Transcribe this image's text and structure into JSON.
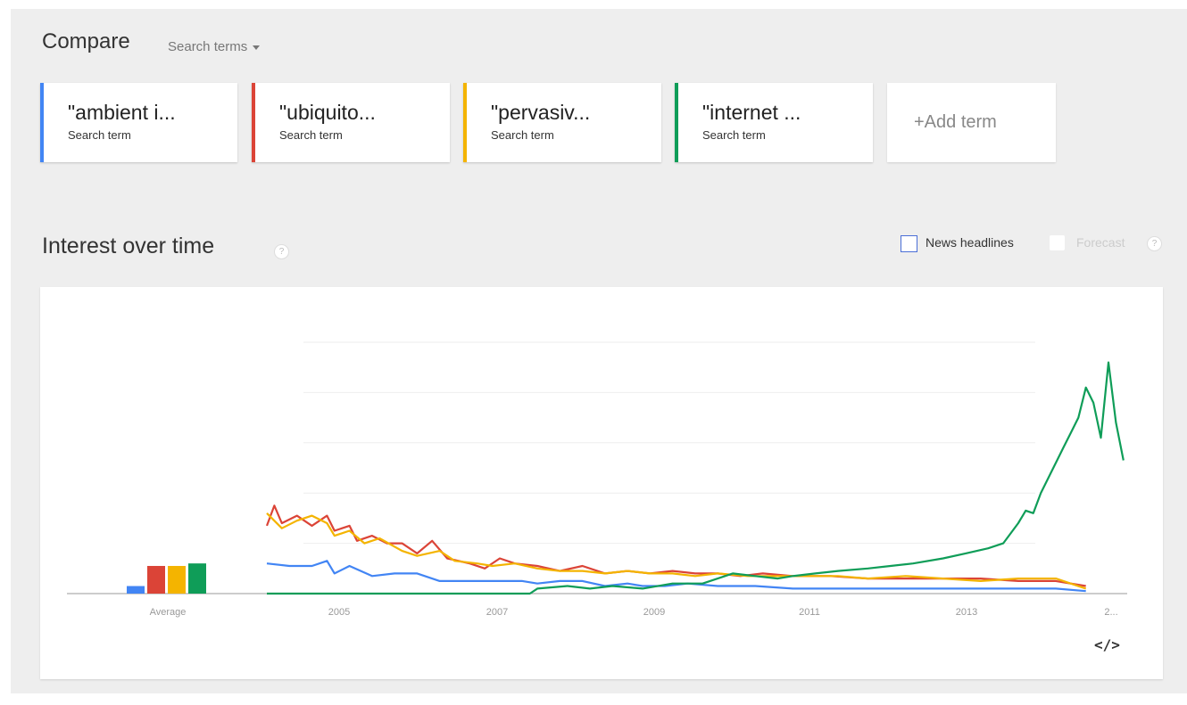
{
  "compare": {
    "title": "Compare",
    "dropdown_label": "Search terms"
  },
  "terms": [
    {
      "label": "\"ambient i...",
      "sub": "Search term",
      "color": "#4285f4"
    },
    {
      "label": "\"ubiquito...",
      "sub": "Search term",
      "color": "#db4437"
    },
    {
      "label": "\"pervasiv...",
      "sub": "Search term",
      "color": "#f4b400"
    },
    {
      "label": "\"internet ...",
      "sub": "Search term",
      "color": "#0f9d58"
    }
  ],
  "add_term": "+Add term",
  "interest": {
    "title": "Interest over time",
    "help": "?",
    "news_label": "News headlines",
    "forecast_label": "Forecast",
    "forecast_help": "?"
  },
  "embed_label": "</>",
  "chart_data": {
    "type": "line",
    "x_ticks": [
      "2005",
      "2007",
      "2009",
      "2011",
      "2013",
      "2..."
    ],
    "ylim": [
      0,
      100
    ],
    "grid": true,
    "average_label": "Average",
    "averages": [
      3,
      11,
      11,
      12
    ],
    "series": [
      {
        "color": "#4285f4",
        "points": [
          [
            2004.0,
            12
          ],
          [
            2004.3,
            11
          ],
          [
            2004.6,
            11
          ],
          [
            2004.8,
            13
          ],
          [
            2004.9,
            8
          ],
          [
            2005.1,
            11
          ],
          [
            2005.4,
            7
          ],
          [
            2005.7,
            8
          ],
          [
            2006.0,
            8
          ],
          [
            2006.3,
            5
          ],
          [
            2006.7,
            5
          ],
          [
            2007.0,
            5
          ],
          [
            2007.4,
            5
          ],
          [
            2007.6,
            4
          ],
          [
            2007.9,
            5
          ],
          [
            2008.2,
            5
          ],
          [
            2008.5,
            3
          ],
          [
            2008.8,
            4
          ],
          [
            2009.0,
            3
          ],
          [
            2009.3,
            3
          ],
          [
            2009.6,
            4
          ],
          [
            2010.0,
            3
          ],
          [
            2010.5,
            3
          ],
          [
            2011.0,
            2
          ],
          [
            2011.5,
            2
          ],
          [
            2012.0,
            2
          ],
          [
            2012.5,
            2
          ],
          [
            2013.0,
            2
          ],
          [
            2013.5,
            2
          ],
          [
            2014.0,
            2
          ],
          [
            2014.5,
            2
          ],
          [
            2014.9,
            1
          ]
        ]
      },
      {
        "color": "#db4437",
        "points": [
          [
            2004.0,
            27
          ],
          [
            2004.1,
            35
          ],
          [
            2004.2,
            28
          ],
          [
            2004.4,
            31
          ],
          [
            2004.6,
            27
          ],
          [
            2004.8,
            31
          ],
          [
            2004.9,
            25
          ],
          [
            2005.1,
            27
          ],
          [
            2005.2,
            21
          ],
          [
            2005.4,
            23
          ],
          [
            2005.6,
            20
          ],
          [
            2005.8,
            20
          ],
          [
            2006.0,
            16
          ],
          [
            2006.2,
            21
          ],
          [
            2006.4,
            14
          ],
          [
            2006.7,
            12
          ],
          [
            2006.9,
            10
          ],
          [
            2007.1,
            14
          ],
          [
            2007.3,
            12
          ],
          [
            2007.6,
            11
          ],
          [
            2007.9,
            9
          ],
          [
            2008.2,
            11
          ],
          [
            2008.5,
            8
          ],
          [
            2008.8,
            9
          ],
          [
            2009.1,
            8
          ],
          [
            2009.4,
            9
          ],
          [
            2009.7,
            8
          ],
          [
            2010.0,
            8
          ],
          [
            2010.3,
            7
          ],
          [
            2010.6,
            8
          ],
          [
            2011.0,
            7
          ],
          [
            2011.5,
            7
          ],
          [
            2012.0,
            6
          ],
          [
            2012.5,
            6
          ],
          [
            2013.0,
            6
          ],
          [
            2013.5,
            6
          ],
          [
            2014.0,
            5
          ],
          [
            2014.5,
            5
          ],
          [
            2014.9,
            3
          ]
        ]
      },
      {
        "color": "#f4b400",
        "points": [
          [
            2004.0,
            32
          ],
          [
            2004.2,
            26
          ],
          [
            2004.4,
            29
          ],
          [
            2004.6,
            31
          ],
          [
            2004.8,
            28
          ],
          [
            2004.9,
            23
          ],
          [
            2005.1,
            25
          ],
          [
            2005.3,
            20
          ],
          [
            2005.5,
            22
          ],
          [
            2005.8,
            17
          ],
          [
            2006.0,
            15
          ],
          [
            2006.3,
            17
          ],
          [
            2006.5,
            13
          ],
          [
            2006.8,
            12
          ],
          [
            2007.0,
            11
          ],
          [
            2007.3,
            12
          ],
          [
            2007.6,
            10
          ],
          [
            2007.9,
            9
          ],
          [
            2008.2,
            9
          ],
          [
            2008.5,
            8
          ],
          [
            2008.8,
            9
          ],
          [
            2009.1,
            8
          ],
          [
            2009.4,
            8
          ],
          [
            2009.7,
            7
          ],
          [
            2010.0,
            8
          ],
          [
            2010.4,
            7
          ],
          [
            2010.8,
            7
          ],
          [
            2011.2,
            7
          ],
          [
            2011.6,
            7
          ],
          [
            2012.0,
            6
          ],
          [
            2012.5,
            7
          ],
          [
            2013.0,
            6
          ],
          [
            2013.5,
            5
          ],
          [
            2014.0,
            6
          ],
          [
            2014.5,
            6
          ],
          [
            2014.9,
            2
          ]
        ]
      },
      {
        "color": "#0f9d58",
        "points": [
          [
            2004.0,
            0
          ],
          [
            2005.0,
            0
          ],
          [
            2006.0,
            0
          ],
          [
            2007.0,
            0
          ],
          [
            2007.5,
            0
          ],
          [
            2007.6,
            2
          ],
          [
            2008.0,
            3
          ],
          [
            2008.3,
            2
          ],
          [
            2008.6,
            3
          ],
          [
            2009.0,
            2
          ],
          [
            2009.4,
            4
          ],
          [
            2009.8,
            4
          ],
          [
            2010.0,
            6
          ],
          [
            2010.2,
            8
          ],
          [
            2010.5,
            7
          ],
          [
            2010.8,
            6
          ],
          [
            2011.0,
            7
          ],
          [
            2011.3,
            8
          ],
          [
            2011.6,
            9
          ],
          [
            2012.0,
            10
          ],
          [
            2012.3,
            11
          ],
          [
            2012.6,
            12
          ],
          [
            2013.0,
            14
          ],
          [
            2013.3,
            16
          ],
          [
            2013.6,
            18
          ],
          [
            2013.8,
            20
          ],
          [
            2014.0,
            28
          ],
          [
            2014.1,
            33
          ],
          [
            2014.2,
            32
          ],
          [
            2014.3,
            40
          ],
          [
            2014.5,
            52
          ],
          [
            2014.6,
            58
          ],
          [
            2014.7,
            64
          ],
          [
            2014.8,
            70
          ],
          [
            2014.9,
            82
          ],
          [
            2015.0,
            76
          ],
          [
            2015.1,
            62
          ],
          [
            2015.2,
            92
          ],
          [
            2015.3,
            68
          ],
          [
            2015.4,
            53
          ]
        ]
      }
    ]
  }
}
